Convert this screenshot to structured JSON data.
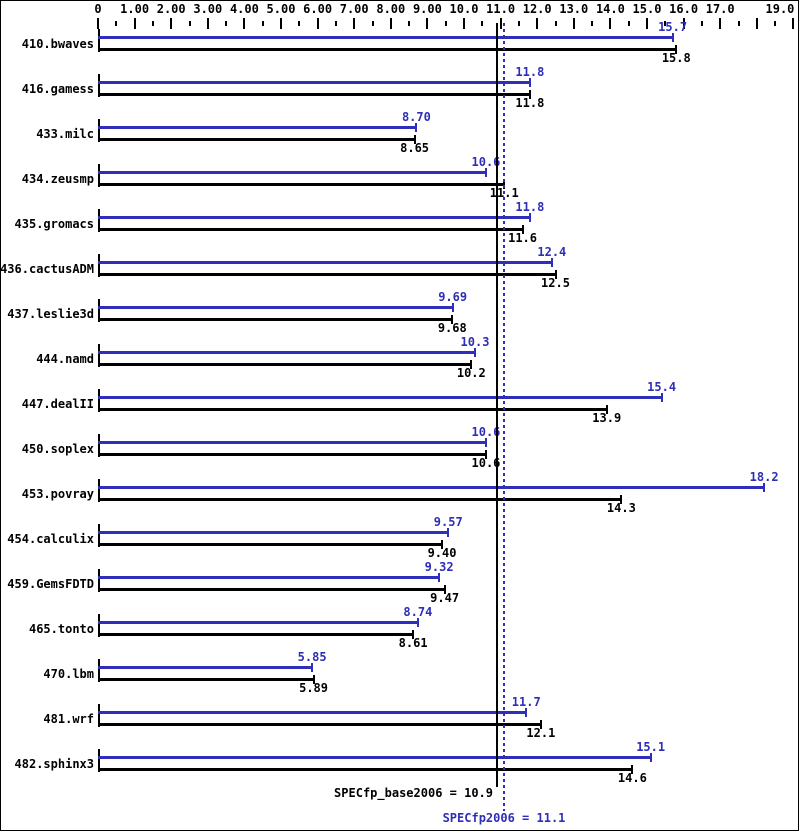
{
  "chart_data": {
    "type": "bar",
    "orientation": "horizontal",
    "categories": [
      "410.bwaves",
      "416.gamess",
      "433.milc",
      "434.zeusmp",
      "435.gromacs",
      "436.cactusADM",
      "437.leslie3d",
      "444.namd",
      "447.dealII",
      "450.soplex",
      "453.povray",
      "454.calculix",
      "459.GemsFDTD",
      "465.tonto",
      "470.lbm",
      "481.wrf",
      "482.sphinx3"
    ],
    "series": [
      {
        "name": "SPECfp2006",
        "color": "#2e2eb8",
        "values": [
          15.7,
          11.8,
          8.7,
          10.6,
          11.8,
          12.4,
          9.69,
          10.3,
          15.4,
          10.6,
          18.2,
          9.57,
          9.32,
          8.74,
          5.85,
          11.7,
          15.1
        ],
        "value_labels": [
          "15.7",
          "11.8",
          "8.70",
          "10.6",
          "11.8",
          "12.4",
          "9.69",
          "10.3",
          "15.4",
          "10.6",
          "18.2",
          "9.57",
          "9.32",
          "8.74",
          "5.85",
          "11.7",
          "15.1"
        ]
      },
      {
        "name": "SPECfp_base2006",
        "color": "#000000",
        "values": [
          15.8,
          11.8,
          8.65,
          11.1,
          11.6,
          12.5,
          9.68,
          10.2,
          13.9,
          10.6,
          14.3,
          9.4,
          9.47,
          8.61,
          5.89,
          12.1,
          14.6
        ],
        "value_labels": [
          "15.8",
          "11.8",
          "8.65",
          "11.1",
          "11.6",
          "12.5",
          "9.68",
          "10.2",
          "13.9",
          "10.6",
          "14.3",
          "9.40",
          "9.47",
          "8.61",
          "5.89",
          "12.1",
          "14.6"
        ]
      }
    ],
    "xlim": [
      0,
      19
    ],
    "x_axis": {
      "min": 0,
      "max": 19,
      "major_tick_step": 1,
      "minor_tick_step": 0.5,
      "tick_labels": [
        {
          "v": 0,
          "text": "0"
        },
        {
          "v": 1,
          "text": "1.00"
        },
        {
          "v": 2,
          "text": "2.00"
        },
        {
          "v": 3,
          "text": "3.00"
        },
        {
          "v": 4,
          "text": "4.00"
        },
        {
          "v": 5,
          "text": "5.00"
        },
        {
          "v": 6,
          "text": "6.00"
        },
        {
          "v": 7,
          "text": "7.00"
        },
        {
          "v": 8,
          "text": "8.00"
        },
        {
          "v": 9,
          "text": "9.00"
        },
        {
          "v": 10,
          "text": "10.0"
        },
        {
          "v": 11,
          "text": "11.0"
        },
        {
          "v": 12,
          "text": "12.0"
        },
        {
          "v": 13,
          "text": "13.0"
        },
        {
          "v": 14,
          "text": "14.0"
        },
        {
          "v": 15,
          "text": "15.0"
        },
        {
          "v": 16,
          "text": "16.0"
        },
        {
          "v": 17,
          "text": "17.0"
        },
        {
          "v": 19,
          "text": "19.0"
        }
      ]
    },
    "reference_lines": [
      {
        "value": 10.9,
        "style": "solid",
        "color": "#000000",
        "label": "SPECfp_base2006 = 10.9"
      },
      {
        "value": 11.1,
        "style": "dotted",
        "color": "#2e2eb8",
        "label": "SPECfp2006 = 11.1"
      }
    ],
    "grid": false,
    "legend_position": "none"
  },
  "colors": {
    "peak_blue": "#2e2eb8",
    "base_black": "#000000",
    "background": "#ffffff"
  },
  "footer": {
    "base_label": "SPECfp_base2006 = 10.9",
    "peak_label": "SPECfp2006 = 11.1"
  }
}
